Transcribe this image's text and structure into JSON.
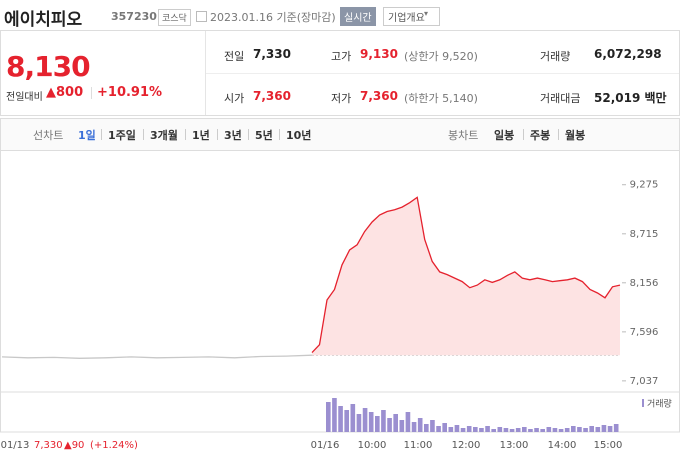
{
  "header": {
    "name": "에이치피오",
    "code": "357230",
    "market": "코스닥",
    "date": "2023.01.16 기준(장마감)",
    "realtime": "실시간",
    "overview": "기업개요"
  },
  "quote": {
    "price": "8,130",
    "change_label": "전일대비",
    "change": "▲800",
    "change_rate": "+10.91%"
  },
  "stats": [
    {
      "label": "전일",
      "value": "7,330"
    },
    {
      "label": "고가",
      "value": "9,130",
      "sub": "(상한가 9,520)"
    },
    {
      "label": "거래량",
      "value": "6,072,298"
    },
    {
      "label": "시가",
      "value": "7,360"
    },
    {
      "label": "저가",
      "value": "7,360",
      "sub": "(하한가 5,140)"
    },
    {
      "label": "거래대금",
      "value": "52,019 백만"
    }
  ],
  "tabs": {
    "line_label": "선차트",
    "line_tabs": [
      "1일",
      "1주일",
      "3개월",
      "1년",
      "3년",
      "5년",
      "10년"
    ],
    "candle_label": "봉차트",
    "candle_tabs": [
      "일봉",
      "주봉",
      "월봉"
    ]
  },
  "chart_data": [
    {
      "type": "line",
      "ylim": [
        6910,
        9500
      ],
      "yticks": [
        {
          "value": 9275,
          "label": "9,275"
        },
        {
          "value": 8715,
          "label": "8,715"
        },
        {
          "value": 8156,
          "label": "8,156"
        },
        {
          "value": 7596,
          "label": "7,596"
        },
        {
          "value": 7037,
          "label": "7,037"
        }
      ],
      "baseline": 7330,
      "x_tick_labels": [
        "01/13",
        "01/16",
        "10:00",
        "11:00",
        "12:00",
        "13:00",
        "14:00",
        "15:00"
      ],
      "prev_day_note": {
        "price": "7,330",
        "change": "▲90",
        "rate": "(+1.24%)"
      },
      "series": [
        {
          "color": "#c8c8c8",
          "values": [
            7310,
            7300,
            7305,
            7295,
            7300,
            7310,
            7300,
            7305,
            7310,
            7300,
            7315,
            7320,
            7330
          ]
        },
        {
          "color": "#e5222e",
          "values": [
            7360,
            7450,
            7960,
            8080,
            8360,
            8530,
            8590,
            8740,
            8850,
            8930,
            8970,
            8990,
            9020,
            9070,
            9130,
            8650,
            8400,
            8280,
            8250,
            8210,
            8170,
            8100,
            8130,
            8190,
            8160,
            8190,
            8240,
            8280,
            8210,
            8190,
            8210,
            8190,
            8170,
            8180,
            8190,
            8210,
            8170,
            8080,
            8040,
            7985,
            8110,
            8130
          ]
        }
      ]
    },
    {
      "type": "bar",
      "series": [
        {
          "name": "거래량",
          "color": "#9b8fd0",
          "values": [
            30,
            34,
            26,
            22,
            28,
            18,
            24,
            20,
            16,
            22,
            14,
            18,
            12,
            20,
            10,
            14,
            8,
            12,
            6,
            9,
            5,
            7,
            4,
            6,
            5,
            4,
            6,
            3,
            5,
            4,
            3,
            4,
            5,
            3,
            4,
            3,
            5,
            4,
            3,
            4,
            6,
            5,
            4,
            6,
            5,
            7,
            6,
            8
          ]
        }
      ]
    }
  ]
}
